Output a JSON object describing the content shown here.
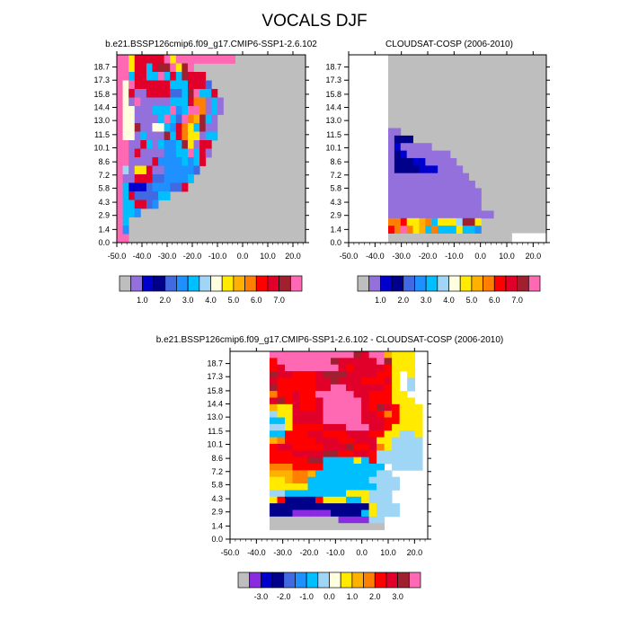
{
  "figure_title": "VOCALS DJF",
  "colors": {
    "missing": "#bebebe",
    "palette_abs": [
      "#bebebe",
      "#9370db",
      "#0000cd",
      "#00008b",
      "#4169e1",
      "#1e90ff",
      "#00bfff",
      "#a0d6f5",
      "#ffffe0",
      "#ffea00",
      "#ffb000",
      "#ff7f00",
      "#ff0000",
      "#e0002a",
      "#a02030",
      "#ff69b4"
    ],
    "palette_diff": [
      "#bebebe",
      "#8a2be2",
      "#0000cd",
      "#00008b",
      "#4169e1",
      "#1e90ff",
      "#00bfff",
      "#a0d6f5",
      "#ffffe0",
      "#ffea00",
      "#ffb000",
      "#ff7f00",
      "#ff0000",
      "#e0002a",
      "#a02030",
      "#ff69b4"
    ]
  },
  "chart_data": [
    {
      "type": "heatmap",
      "title": "b.e21.BSSP126cmip6.f09_g17.CMIP6-SSP1-2.6.102",
      "xticks": [
        "-50.0",
        "-40.0",
        "-30.0",
        "-20.0",
        "-10.0",
        "0.0",
        "10.0",
        "20.0"
      ],
      "yticks": [
        "0.0",
        "1.4",
        "2.9",
        "4.3",
        "5.8",
        "7.2",
        "8.6",
        "10.1",
        "11.5",
        "13.0",
        "14.4",
        "15.8",
        "17.3",
        "18.7"
      ],
      "xlim": [
        -50,
        25
      ],
      "ylim": [
        0,
        20
      ],
      "colorbar_labels": [
        "1.0",
        "2.0",
        "3.0",
        "4.0",
        "5.0",
        "6.0",
        "7.0"
      ],
      "colorbar_label_index": [
        2,
        4,
        6,
        8,
        10,
        12,
        14
      ]
    },
    {
      "type": "heatmap",
      "title": "CLOUDSAT-COSP (2006-2010)",
      "xticks": [
        "-50.0",
        "-40.0",
        "-30.0",
        "-20.0",
        "-10.0",
        "0.0",
        "10.0",
        "20.0"
      ],
      "yticks": [
        "0.0",
        "1.4",
        "2.9",
        "4.3",
        "5.8",
        "7.2",
        "8.6",
        "10.1",
        "11.5",
        "13.0",
        "14.4",
        "15.8",
        "17.3",
        "18.7"
      ],
      "xlim": [
        -50,
        25
      ],
      "ylim": [
        0,
        20
      ],
      "colorbar_labels": [
        "1.0",
        "2.0",
        "3.0",
        "4.0",
        "5.0",
        "6.0",
        "7.0"
      ],
      "colorbar_label_index": [
        2,
        4,
        6,
        8,
        10,
        12,
        14
      ]
    },
    {
      "type": "heatmap",
      "title": "b.e21.BSSP126cmip6.f09_g17.CMIP6-SSP1-2.6.102 - CLOUDSAT-COSP (2006-2010)",
      "xticks": [
        "-50.0",
        "-40.0",
        "-30.0",
        "-20.0",
        "-10.0",
        "0.0",
        "10.0",
        "20.0"
      ],
      "yticks": [
        "0.0",
        "1.4",
        "2.9",
        "4.3",
        "5.8",
        "7.2",
        "8.6",
        "10.1",
        "11.5",
        "13.0",
        "14.4",
        "15.8",
        "17.3",
        "18.7"
      ],
      "xlim": [
        -50,
        25
      ],
      "ylim": [
        0,
        20
      ],
      "colorbar_labels": [
        "-3.0",
        "-2.0",
        "-1.0",
        "0.0",
        "1.0",
        "2.0",
        "3.0"
      ],
      "colorbar_label_index": [
        2,
        4,
        6,
        8,
        10,
        12,
        14
      ]
    }
  ]
}
